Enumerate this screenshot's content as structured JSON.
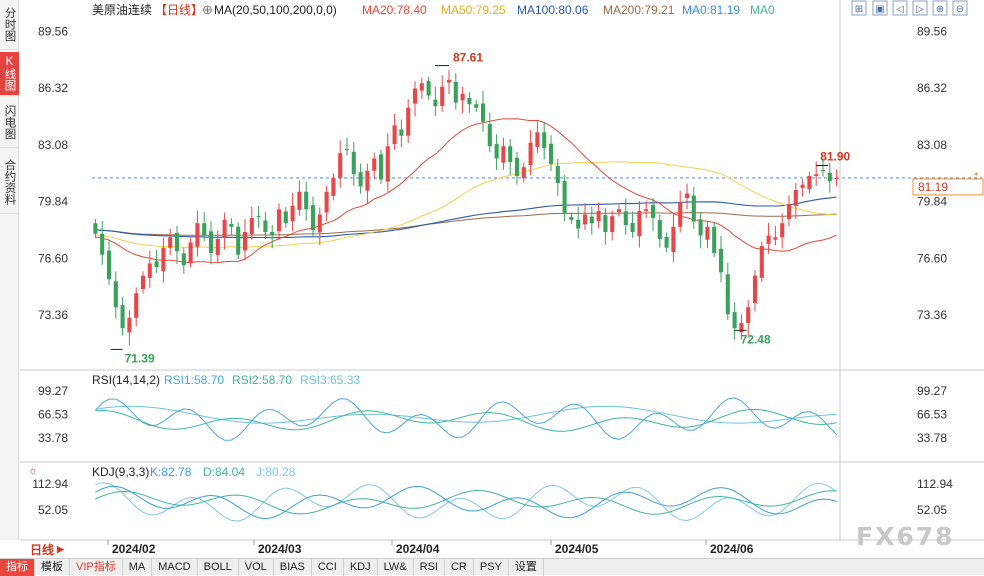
{
  "sidebar": {
    "tabs": [
      {
        "label": "分时图",
        "active": false
      },
      {
        "label": "K线图",
        "active": true
      },
      {
        "label": "闪电图",
        "active": false
      },
      {
        "label": "合约资料",
        "active": false
      }
    ]
  },
  "header": {
    "instrument": "美原油连续",
    "period": "【日线】",
    "ma_label": "MA(20,50,100,200,0,0)",
    "ma20": "MA20:78.40",
    "ma50": "MA50:79.25",
    "ma100": "MA100:80.06",
    "ma200": "MA200:79.21",
    "ma0a": "MA0:81.19",
    "ma0b": "MA0"
  },
  "toolbar_icons": [
    "expand-icon",
    "window-icon",
    "prev-icon",
    "next-icon",
    "zoom-in-icon",
    "zoom-out-icon"
  ],
  "price_axis": {
    "ticks": [
      "89.56",
      "86.32",
      "83.08",
      "79.84",
      "76.60",
      "73.36"
    ],
    "last_price": "81.19"
  },
  "annotations": {
    "high": "87.61",
    "low": "71.39",
    "swing_low": "72.48",
    "recent_high": "81.90"
  },
  "rsi": {
    "label": "RSI(14,14,2)",
    "rsi1": "RSI1:58.70",
    "rsi2": "RSI2:58.70",
    "rsi3": "RSI3:65.33",
    "ticks": [
      "99.27",
      "66.53",
      "33.78"
    ]
  },
  "kdj": {
    "label": "KDJ(9,3,3)",
    "k": "K:82.78",
    "d": "D:84.04",
    "j": "J:80.28",
    "ticks": [
      "112.94",
      "52.05"
    ]
  },
  "date_axis": [
    "2024/02",
    "2024/03",
    "2024/04",
    "2024/05",
    "2024/06"
  ],
  "period_button": {
    "label": "日线"
  },
  "bottom_bar": [
    "指标",
    "模板",
    "VIP指标",
    "MA",
    "MACD",
    "BOLL",
    "VOL",
    "BIAS",
    "CCI",
    "KDJ",
    "LW&",
    "RSI",
    "CR",
    "PSY",
    "设置"
  ],
  "watermark": "FX678",
  "colors": {
    "up": "#e8474a",
    "down": "#3aa15a",
    "ma20": "#e24a3b",
    "ma50": "#f0d04a",
    "ma100": "#2a5aa8",
    "ma200": "#9a6a4a",
    "ma0": "#3b8ee0",
    "rsi1": "#4aa8d8",
    "rsi2": "#3fb89a",
    "rsi3": "#6cc3e0",
    "k": "#3b9fd8",
    "d": "#3fb89a",
    "j": "#7ec9ea"
  },
  "chart_data": {
    "type": "candlestick",
    "title": "美原油连续 日线",
    "ylim": [
      70.5,
      90.5
    ],
    "series_close": [
      78.0,
      76.8,
      75.4,
      73.8,
      72.6,
      73.2,
      74.6,
      75.6,
      76.3,
      76.1,
      77.2,
      77.8,
      77.0,
      76.2,
      77.5,
      78.6,
      77.9,
      76.9,
      77.7,
      78.8,
      78.4,
      76.8,
      78.1,
      78.9,
      79.0,
      78.1,
      77.9,
      79.4,
      78.6,
      79.6,
      80.4,
      79.4,
      78.2,
      79.1,
      80.4,
      81.2,
      82.6,
      82.8,
      81.4,
      80.7,
      81.6,
      82.3,
      81.1,
      83.0,
      84.2,
      83.6,
      85.2,
      86.3,
      86.6,
      85.9,
      85.3,
      86.4,
      86.8,
      85.5,
      86.0,
      85.4,
      85.2,
      84.4,
      83.0,
      82.3,
      83.0,
      82.1,
      81.3,
      81.8,
      83.2,
      83.8,
      82.9,
      82.0,
      80.9,
      79.2,
      78.8,
      78.3,
      79.1,
      78.6,
      79.3,
      78.1,
      79.0,
      79.4,
      78.5,
      78.1,
      79.3,
      79.4,
      78.9,
      77.7,
      77.2,
      78.4,
      79.8,
      80.3,
      78.7,
      77.9,
      78.4,
      76.9,
      75.8,
      73.4,
      72.6,
      72.9,
      73.8,
      75.6,
      77.3,
      77.9,
      77.8,
      78.6,
      79.7,
      80.5,
      80.8,
      81.3,
      81.4,
      81.6,
      81.0,
      81.19
    ],
    "high_point": {
      "value": 87.61,
      "label": "87.61"
    },
    "low_point": {
      "value": 71.39,
      "label": "71.39"
    },
    "swing_low": {
      "value": 72.48,
      "label": "72.48"
    },
    "recent_high": {
      "value": 81.9,
      "label": "81.90"
    },
    "ma20_last": 78.4,
    "ma50_last": 79.25,
    "ma100_last": 80.06,
    "ma200_last": 79.21,
    "current_price": 81.19,
    "x_labels": [
      "2024/02",
      "2024/03",
      "2024/04",
      "2024/05",
      "2024/06"
    ],
    "rsi_range": [
      33.78,
      99.27
    ],
    "kdj_range": [
      52.05,
      112.94
    ]
  }
}
